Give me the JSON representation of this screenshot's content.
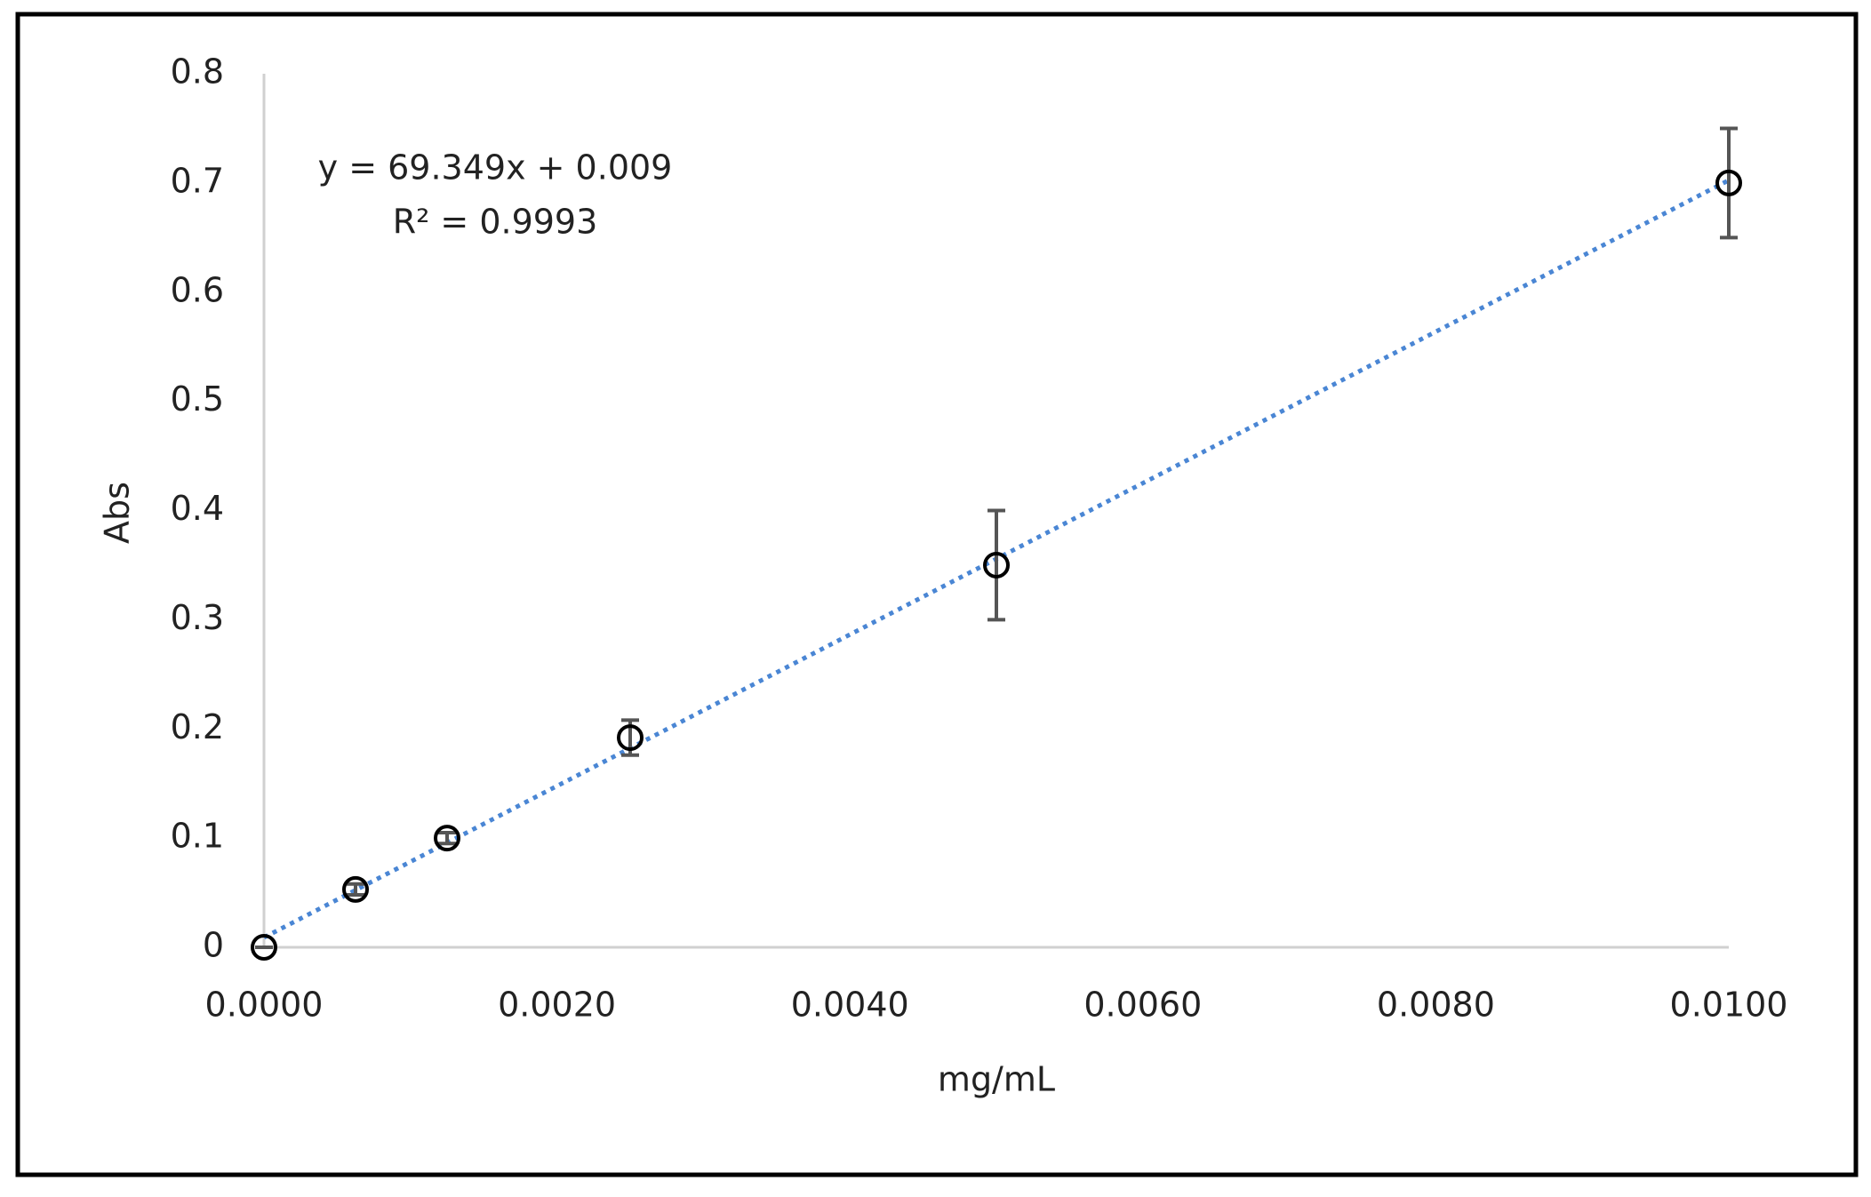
{
  "chart_data": {
    "type": "scatter",
    "x_label": "mg/mL",
    "y_label": "Abs",
    "x": [
      0,
      0.000625,
      0.00125,
      0.0025,
      0.005,
      0.01
    ],
    "series": [
      {
        "name": "Abs",
        "color": "#000000",
        "values": [
          0,
          0.053,
          0.1,
          0.192,
          0.35,
          0.7
        ],
        "errors": [
          0,
          0.005,
          0.005,
          0.016,
          0.05,
          0.05
        ]
      }
    ],
    "trendline": {
      "slope": 69.349,
      "intercept": 0.009,
      "color": "#4a86d4",
      "equation": "y = 69.349x + 0.009",
      "r_squared": "R² = 0.9993"
    },
    "xlim": [
      0,
      0.01
    ],
    "ylim": [
      0,
      0.8
    ],
    "xticks": [
      {
        "value": 0,
        "label": "0.0000"
      },
      {
        "value": 0.002,
        "label": "0.0020"
      },
      {
        "value": 0.004,
        "label": "0.0040"
      },
      {
        "value": 0.006,
        "label": "0.0060"
      },
      {
        "value": 0.008,
        "label": "0.0080"
      },
      {
        "value": 0.01,
        "label": "0.0100"
      }
    ],
    "yticks": [
      0,
      0.1,
      0.2,
      0.3,
      0.4,
      0.5,
      0.6,
      0.7,
      0.8
    ],
    "grid": false
  }
}
